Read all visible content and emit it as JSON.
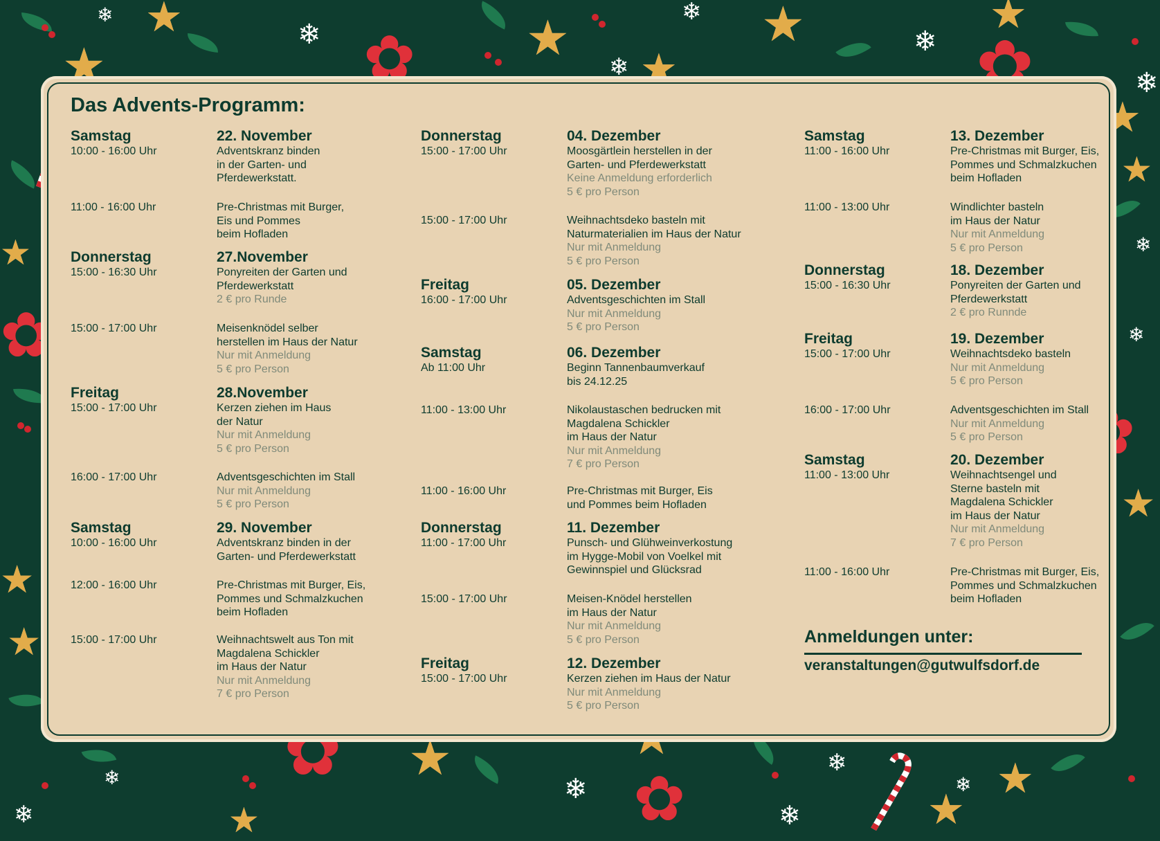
{
  "title": "Das Advents-Programm:",
  "sections": [
    {
      "entries": [
        {
          "day": "Samstag",
          "time": "10:00 - 16:00 Uhr",
          "date": "22. November",
          "lines": [
            "Adventskranz binden",
            "in der Garten- und",
            "Pferdewerkstatt."
          ],
          "notes": []
        },
        {
          "day": "",
          "time": "11:00 - 16:00 Uhr",
          "date": "",
          "lines": [
            "Pre-Christmas mit Burger,",
            "Eis und Pommes",
            "beim Hofladen"
          ],
          "notes": []
        },
        {
          "day": "Donnerstag",
          "time": "15:00 - 16:30 Uhr",
          "date": "27.November",
          "lines": [
            "Ponyreiten der Garten und",
            "Pferdewerkstatt"
          ],
          "notes": [
            "2 € pro Runde"
          ]
        },
        {
          "day": "",
          "time": "15:00 - 17:00 Uhr",
          "date": "",
          "lines": [
            "Meisenknödel selber",
            "herstellen im Haus der Natur"
          ],
          "notes": [
            "Nur mit Anmeldung",
            "5 € pro Person"
          ]
        },
        {
          "day": "Freitag",
          "time": "15:00 - 17:00 Uhr",
          "date": "28.November",
          "lines": [
            "Kerzen ziehen im Haus",
            "der Natur"
          ],
          "notes": [
            "Nur mit Anmeldung",
            "5 € pro Person"
          ]
        },
        {
          "day": "",
          "time": "16:00 - 17:00 Uhr",
          "date": "",
          "lines": [
            "Adventsgeschichten im Stall"
          ],
          "notes": [
            "Nur mit Anmeldung",
            "5 € pro Person"
          ]
        },
        {
          "day": "Samstag",
          "time": "10:00 - 16:00 Uhr",
          "date": "29. November",
          "lines": [
            "Adventskranz binden in der",
            "Garten- und Pferdewerkstatt"
          ],
          "notes": []
        },
        {
          "day": "",
          "time": "12:00 - 16:00 Uhr",
          "date": "",
          "lines": [
            "Pre-Christmas mit Burger, Eis,",
            "Pommes und Schmalzkuchen",
            "beim Hofladen"
          ],
          "notes": []
        },
        {
          "day": "",
          "time": "15:00 - 17:00 Uhr",
          "date": "",
          "lines": [
            "Weihnachtswelt aus Ton mit",
            "Magdalena Schickler",
            "im Haus der Natur"
          ],
          "notes": [
            "Nur mit Anmeldung",
            "7 € pro Person"
          ]
        }
      ]
    },
    {
      "entries": [
        {
          "day": "Donnerstag",
          "time": "15:00 - 17:00 Uhr",
          "date": "04. Dezember",
          "lines": [
            "Moosgärtlein herstellen in der",
            "Garten- und Pferdewerkstatt"
          ],
          "notes": [
            "Keine Anmeldung erforderlich",
            "5 € pro Person"
          ]
        },
        {
          "day": "",
          "time": "15:00 - 17:00 Uhr",
          "date": "",
          "lines": [
            "Weihnachtsdeko basteln mit",
            "Naturmaterialien im Haus der Natur"
          ],
          "notes": [
            "Nur mit Anmeldung",
            "5 € pro Person"
          ]
        },
        {
          "day": "Freitag",
          "time": "16:00 - 17:00 Uhr",
          "date": "05. Dezember",
          "lines": [
            "Adventsgeschichten im Stall"
          ],
          "notes": [
            "Nur mit Anmeldung",
            "5 € pro Person"
          ]
        },
        {
          "day": "Samstag",
          "time": "Ab 11:00 Uhr",
          "date": "06. Dezember",
          "lines": [
            "Beginn Tannenbaumverkauf",
            "bis 24.12.25"
          ],
          "notes": []
        },
        {
          "day": "",
          "time": "11:00 - 13:00 Uhr",
          "date": "",
          "lines": [
            "Nikolaustaschen bedrucken mit",
            "Magdalena Schickler",
            "im Haus der Natur"
          ],
          "notes": [
            "Nur mit Anmeldung",
            "7 € pro Person"
          ]
        },
        {
          "day": "",
          "time": "11:00 - 16:00 Uhr",
          "date": "",
          "lines": [
            "Pre-Christmas mit Burger, Eis",
            "und Pommes beim Hofladen"
          ],
          "notes": []
        },
        {
          "day": "Donnerstag",
          "time": "11:00 - 17:00 Uhr",
          "date": "11. Dezember",
          "lines": [
            "Punsch- und Glühweinverkostung",
            "im Hygge-Mobil von Voelkel mit",
            "Gewinnspiel und Glücksrad"
          ],
          "notes": []
        },
        {
          "day": "",
          "time": "15:00 - 17:00 Uhr",
          "date": "",
          "lines": [
            "Meisen-Knödel herstellen",
            "im Haus der Natur"
          ],
          "notes": [
            "Nur mit Anmeldung",
            "5 € pro Person"
          ]
        },
        {
          "day": "Freitag",
          "time": "15:00 - 17:00 Uhr",
          "date": "12. Dezember",
          "lines": [
            "Kerzen ziehen im Haus der Natur"
          ],
          "notes": [
            "Nur mit Anmeldung",
            "5 € pro Person"
          ]
        }
      ]
    },
    {
      "entries": [
        {
          "day": "Samstag",
          "time": "11:00 - 16:00 Uhr",
          "date": "13. Dezember",
          "lines": [
            "Pre-Christmas mit Burger, Eis,",
            "Pommes und Schmalzkuchen",
            "beim Hofladen"
          ],
          "notes": []
        },
        {
          "day": "",
          "time": "11:00 - 13:00 Uhr",
          "date": "",
          "lines": [
            "Windlichter basteln",
            "im Haus der Natur"
          ],
          "notes": [
            "Nur mit Anmeldung",
            "5 € pro Person"
          ]
        },
        {
          "day": "Donnerstag",
          "time": "15:00 - 16:30 Uhr",
          "date": "18. Dezember",
          "lines": [
            "Ponyreiten der Garten und",
            "Pferdewerkstatt"
          ],
          "notes": [
            "2 € pro Runnde"
          ]
        },
        {
          "day": "Freitag",
          "time": "15:00 - 17:00 Uhr",
          "date": "19. Dezember",
          "lines": [
            "Weihnachtsdeko basteln"
          ],
          "notes": [
            "Nur mit Anmeldung",
            "5 € pro Person"
          ]
        },
        {
          "day": "",
          "time": "16:00 - 17:00 Uhr",
          "date": "",
          "lines": [
            "Adventsgeschichten im Stall"
          ],
          "notes": [
            "Nur mit Anmeldung",
            "5 € pro Person"
          ]
        },
        {
          "day": "Samstag",
          "time": "11:00 - 13:00 Uhr",
          "date": "20. Dezember",
          "lines": [
            "Weihnachtsengel und",
            "Sterne basteln mit",
            "Magdalena Schickler",
            "im Haus der Natur"
          ],
          "notes": [
            "Nur mit Anmeldung",
            "7 € pro Person"
          ]
        },
        {
          "day": "",
          "time": "11:00 - 16:00 Uhr",
          "date": "",
          "lines": [
            "Pre-Christmas mit Burger, Eis,",
            "Pommes und Schmalzkuchen",
            "beim Hofladen"
          ],
          "notes": []
        }
      ]
    }
  ],
  "footer": {
    "heading": "Anmeldungen unter:",
    "email": "veranstaltungen@gutwulfsdorf.de"
  },
  "colors": {
    "background": "#0e3d2f",
    "card": "#e8d3b3",
    "text": "#0d3b2e",
    "note": "#7f8a7a",
    "accent_gold": "#e2ac4a",
    "accent_red": "#d0262e"
  },
  "decorations": [
    "star-cookie-icon",
    "snowflake-icon",
    "poinsettia-icon",
    "holly-leaf-icon",
    "berry-icon",
    "candy-cane-icon",
    "mug-icon",
    "waffle-icon"
  ]
}
